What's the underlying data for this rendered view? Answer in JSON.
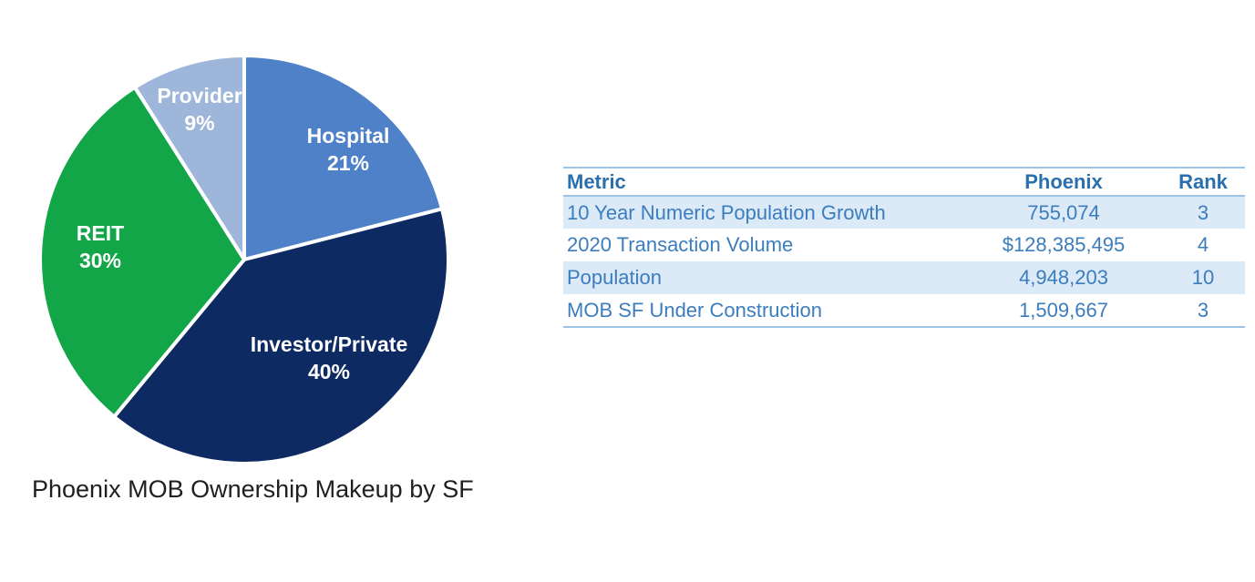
{
  "chart_data": {
    "type": "pie",
    "title": "Phoenix MOB Ownership Makeup by SF",
    "legend_position": "none",
    "labels_on_slices": true,
    "label_format": "{label} {value}%",
    "start_angle_deg": -90,
    "direction": "clockwise",
    "divider_color": "#FFFFFF",
    "slices": [
      {
        "label": "Hospital",
        "value": 21,
        "unit": "%",
        "color": "#4E81C8"
      },
      {
        "label": "Investor/Private",
        "value": 40,
        "unit": "%",
        "color": "#0E2A63"
      },
      {
        "label": "REIT",
        "value": 30,
        "unit": "%",
        "color": "#13A649"
      },
      {
        "label": "Provider",
        "value": 9,
        "unit": "%",
        "color": "#9FB6DB"
      }
    ]
  },
  "table": {
    "columns": [
      "Metric",
      "Phoenix",
      "Rank"
    ],
    "rows": [
      [
        "10 Year Numeric Population Growth",
        "755,074",
        "3"
      ],
      [
        "2020 Transaction Volume",
        "$128,385,495",
        "4"
      ],
      [
        "Population",
        "4,948,203",
        "10"
      ],
      [
        "MOB SF Under Construction",
        "1,509,667",
        "3"
      ]
    ],
    "stripe_color": "#DCE9F6",
    "border_color": "#9DC3E6",
    "header_text_color": "#2A6FAE",
    "body_text_color": "#3B7DBE"
  }
}
